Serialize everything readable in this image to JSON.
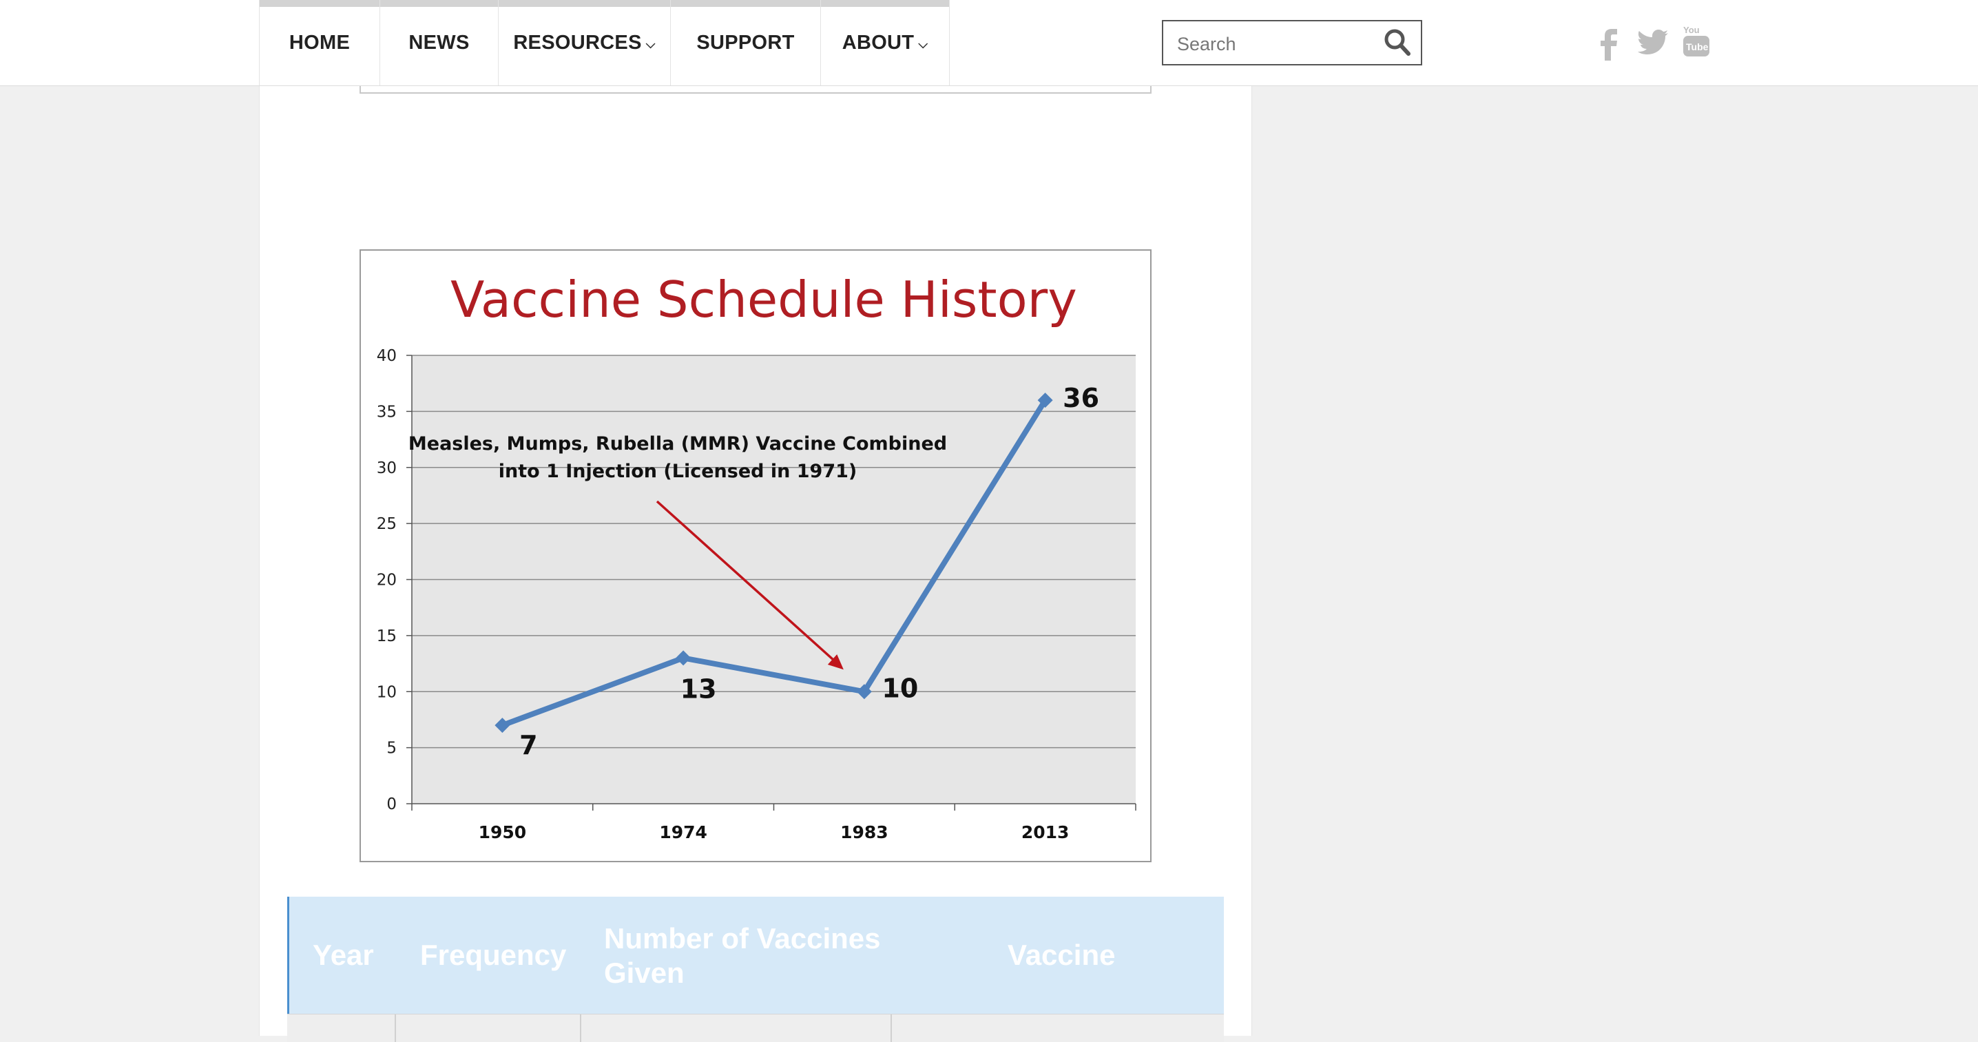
{
  "nav": {
    "items": [
      {
        "label": "HOME",
        "has_dropdown": false
      },
      {
        "label": "NEWS",
        "has_dropdown": false
      },
      {
        "label": "RESOURCES",
        "has_dropdown": true
      },
      {
        "label": "SUPPORT",
        "has_dropdown": false
      },
      {
        "label": "ABOUT",
        "has_dropdown": true
      }
    ],
    "dropdown_glyph": "⌵"
  },
  "search": {
    "placeholder": "Search",
    "icon": "search-icon"
  },
  "social": [
    "facebook-icon",
    "twitter-icon",
    "youtube-icon"
  ],
  "colors": {
    "chart_title": "#b01e23",
    "series_line": "#4f81bd",
    "arrow": "#c0141b",
    "plot_bg": "#e6e6e6",
    "table_header_bg": "#d6e9f8",
    "table_accent": "#4a8fcf",
    "social_icon": "#bdbdbd"
  },
  "chart_data": {
    "type": "line",
    "title": "Vaccine Schedule History",
    "categories": [
      "1950",
      "1974",
      "1983",
      "2013"
    ],
    "series": [
      {
        "values": [
          7,
          13,
          10,
          36
        ]
      }
    ],
    "data_labels": [
      "7",
      "13",
      "10",
      "36"
    ],
    "ylim": [
      0,
      40
    ],
    "yticks": [
      0,
      5,
      10,
      15,
      20,
      25,
      30,
      35,
      40
    ],
    "grid": true,
    "annotation": {
      "lines": [
        "Measles, Mumps, Rubella (MMR) Vaccine Combined",
        "into 1 Injection (Licensed in 1971)"
      ],
      "arrow_to": "1983"
    }
  },
  "table": {
    "headers": [
      "Year",
      "Frequency",
      "Number of Vaccines Given",
      "Vaccine"
    ]
  }
}
